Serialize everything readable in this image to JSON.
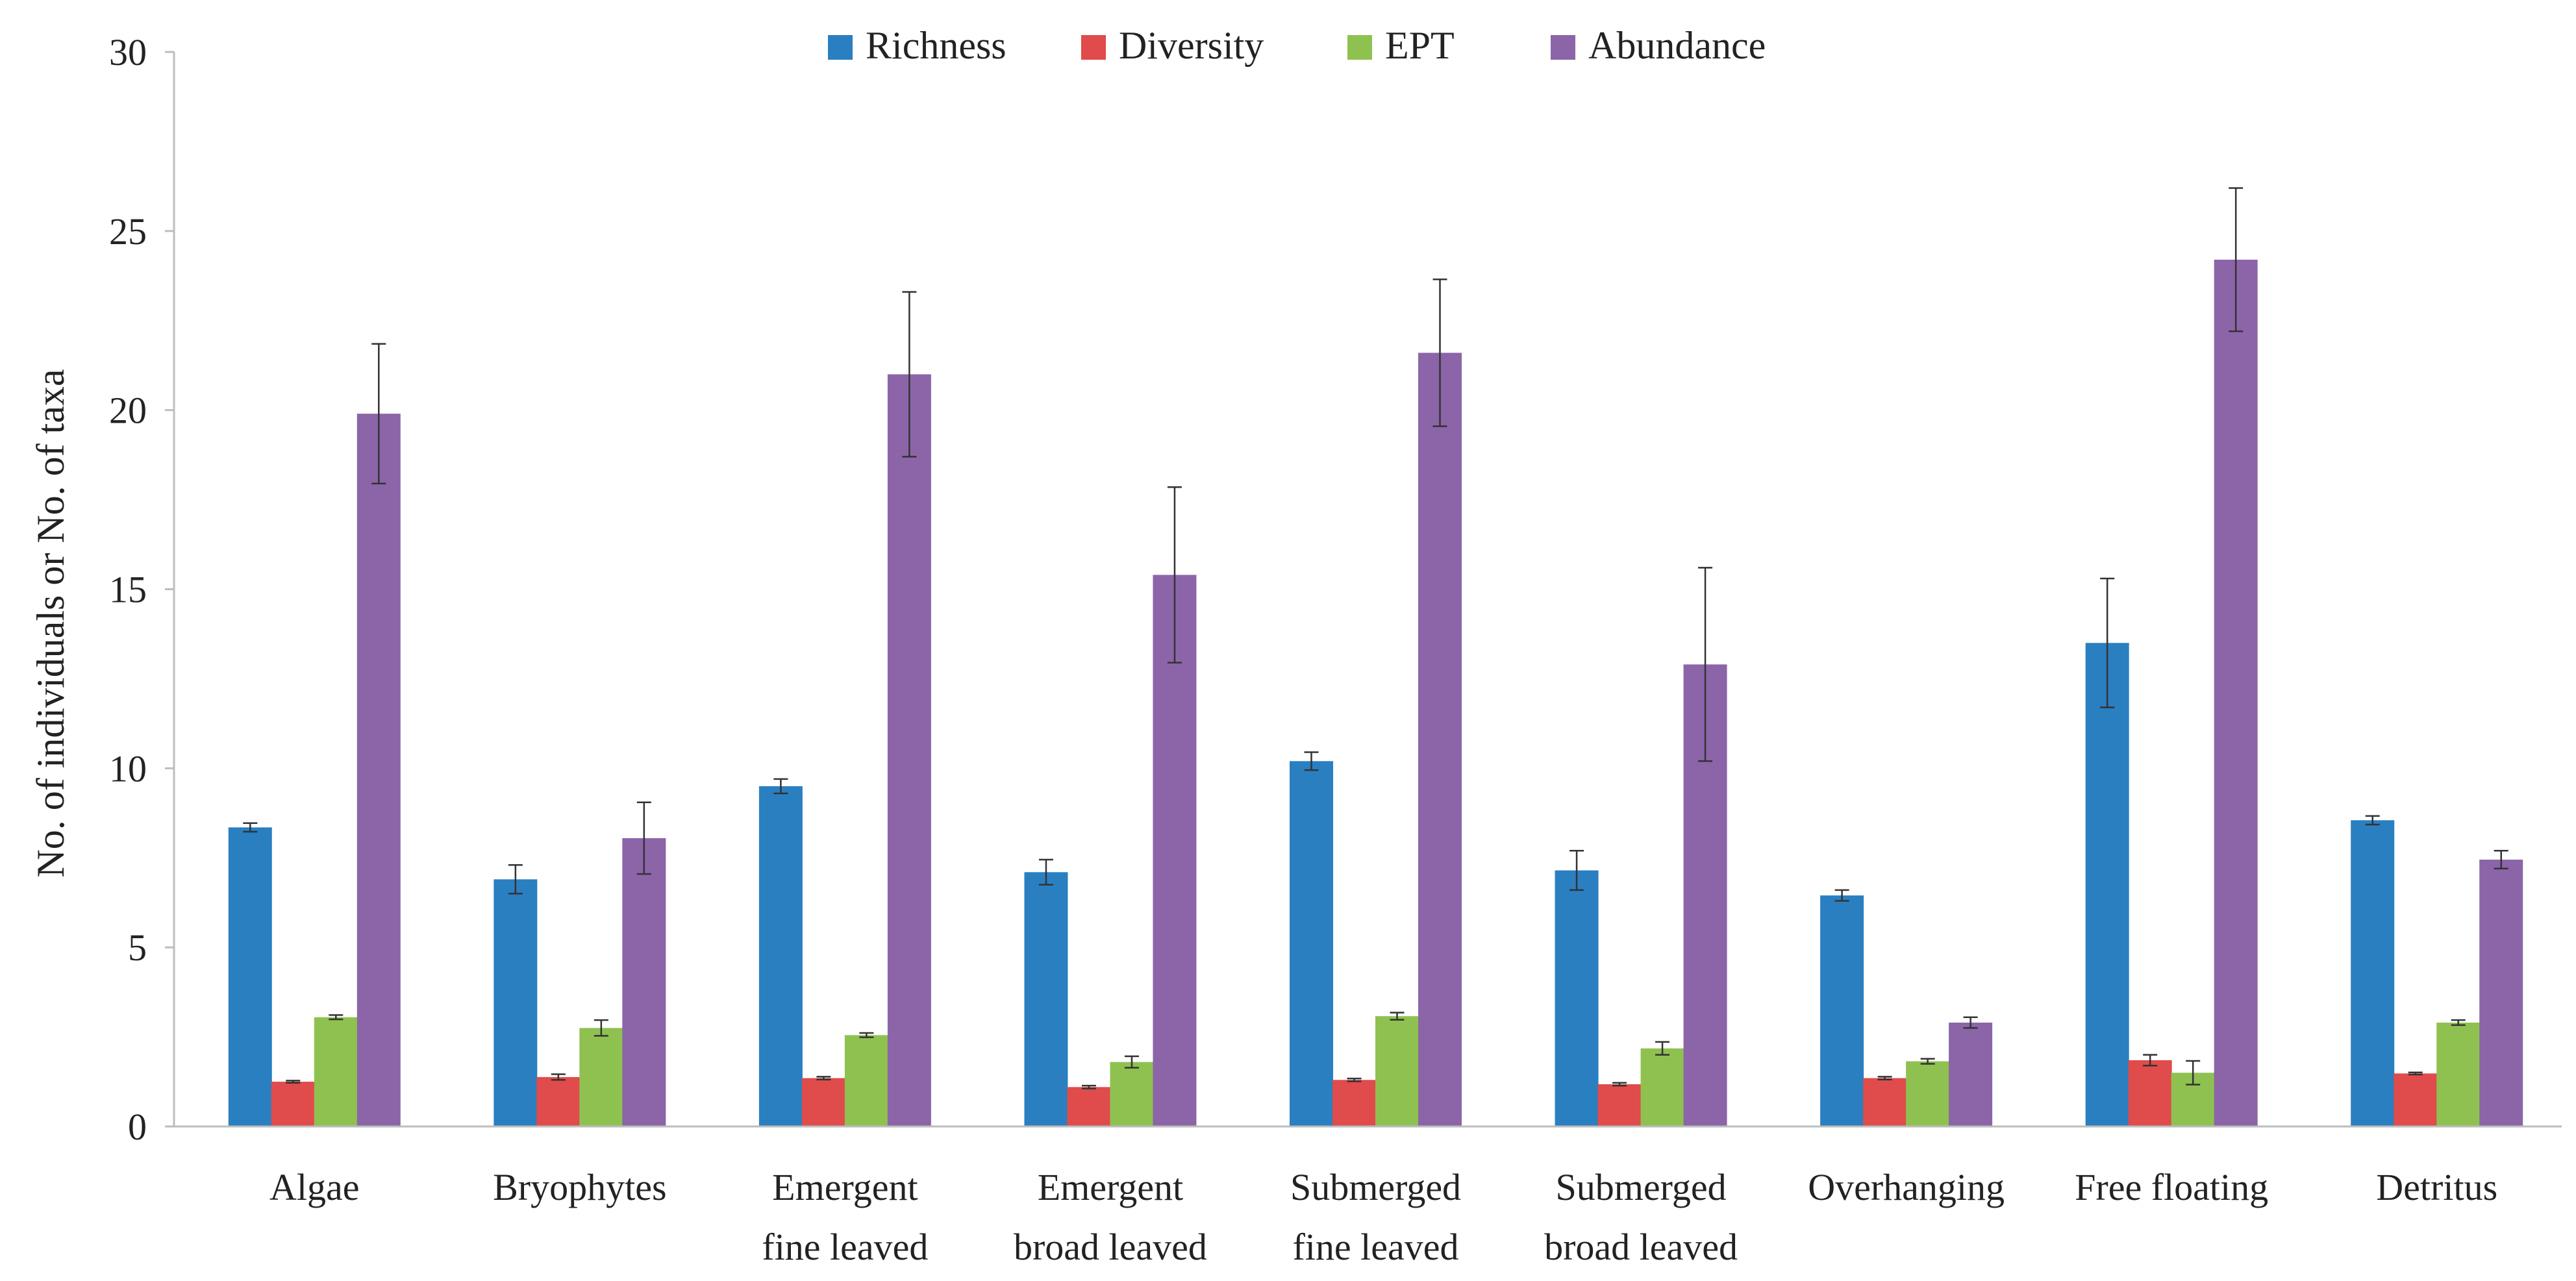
{
  "chart_data": {
    "type": "bar",
    "title": "",
    "xlabel": "",
    "ylabel": "No. of individuals or No. of taxa",
    "ylim": [
      0,
      30
    ],
    "yticks": [
      0,
      5,
      10,
      15,
      20,
      25,
      30
    ],
    "grid": false,
    "legend_position": "top-center",
    "categories": [
      [
        "Algae"
      ],
      [
        "Bryophytes"
      ],
      [
        "Emergent",
        "fine leaved"
      ],
      [
        "Emergent",
        "broad leaved"
      ],
      [
        "Submerged",
        "fine leaved"
      ],
      [
        "Submerged",
        "broad leaved"
      ],
      [
        "Overhanging"
      ],
      [
        "Free floating"
      ],
      [
        "Detritus"
      ]
    ],
    "series": [
      {
        "name": "Richness",
        "color": "#2a7fc1",
        "values": [
          8.35,
          6.9,
          9.5,
          7.1,
          10.2,
          7.15,
          6.45,
          13.5,
          8.55
        ],
        "errors": [
          0.12,
          0.4,
          0.2,
          0.35,
          0.25,
          0.55,
          0.15,
          1.8,
          0.12
        ]
      },
      {
        "name": "Diversity",
        "color": "#e04b4b",
        "values": [
          1.25,
          1.38,
          1.35,
          1.1,
          1.3,
          1.18,
          1.35,
          1.85,
          1.48
        ],
        "errors": [
          0.03,
          0.08,
          0.04,
          0.04,
          0.04,
          0.04,
          0.04,
          0.15,
          0.03
        ]
      },
      {
        "name": "EPT",
        "color": "#8fc151",
        "values": [
          3.05,
          2.75,
          2.55,
          1.8,
          3.08,
          2.18,
          1.82,
          1.5,
          2.9
        ],
        "errors": [
          0.06,
          0.22,
          0.06,
          0.16,
          0.1,
          0.18,
          0.07,
          0.33,
          0.07
        ]
      },
      {
        "name": "Abundance",
        "color": "#8b65a8",
        "values": [
          19.9,
          8.05,
          21.0,
          15.4,
          21.6,
          12.9,
          2.9,
          24.2,
          7.45
        ],
        "errors": [
          1.95,
          1.0,
          2.3,
          2.45,
          2.05,
          2.7,
          0.15,
          2.0,
          0.25
        ]
      }
    ]
  }
}
